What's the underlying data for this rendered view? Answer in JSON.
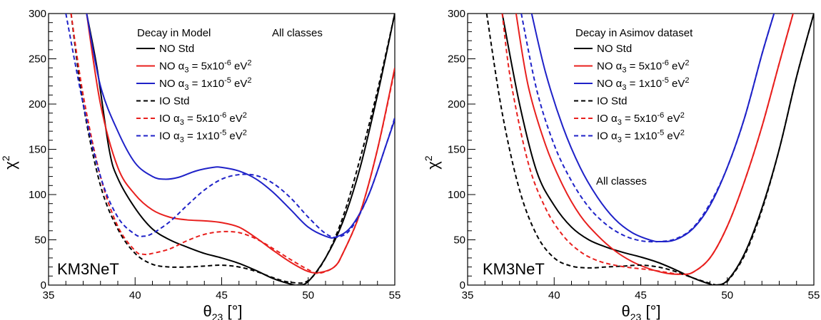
{
  "chart_data": [
    {
      "type": "line",
      "xlabel": "θ23 [°]",
      "ylabel": "χ2",
      "xlim": [
        35,
        55
      ],
      "ylim": [
        0,
        300
      ],
      "xticks": [
        35,
        40,
        45,
        50,
        55
      ],
      "yticks": [
        0,
        50,
        100,
        150,
        200,
        250,
        300
      ],
      "legend_title": "Decay in Model",
      "note": "All classes",
      "watermark": "KM3NeT",
      "legend_position": "top-center",
      "series": [
        {
          "name": "NO Std",
          "color": "#000000",
          "dash": "solid",
          "x": [
            37.2,
            37.8,
            38.5,
            39.0,
            40.0,
            41.0,
            42.0,
            43.0,
            44.0,
            45.0,
            46.0,
            47.0,
            48.0,
            49.0,
            49.4,
            50.0,
            51.0,
            52.0,
            53.0,
            54.0,
            55.0
          ],
          "y": [
            300,
            240,
            150,
            118,
            85,
            62,
            50,
            42,
            35,
            30,
            24,
            16,
            7,
            1,
            0,
            4,
            30,
            70,
            130,
            210,
            300
          ]
        },
        {
          "name": "NO α3 = 5x10-6 eV2",
          "color": "#e8201e",
          "dash": "solid",
          "x": [
            37.2,
            38.0,
            39.0,
            40.0,
            41.0,
            42.0,
            43.0,
            44.0,
            45.0,
            46.0,
            47.0,
            48.0,
            49.0,
            50.0,
            50.7,
            51.5,
            52.0,
            53.0,
            54.0,
            55.0
          ],
          "y": [
            300,
            200,
            130,
            100,
            83,
            75,
            72,
            71,
            69,
            64,
            52,
            38,
            25,
            15,
            14,
            20,
            35,
            80,
            150,
            240
          ]
        },
        {
          "name": "NO α3 = 1x10-5 eV2",
          "color": "#1f22c8",
          "dash": "solid",
          "x": [
            37.2,
            38.0,
            39.0,
            40.0,
            41.0,
            41.7,
            42.5,
            43.5,
            44.5,
            45.0,
            46.0,
            47.0,
            48.0,
            49.0,
            50.0,
            51.0,
            51.6,
            52.5,
            53.5,
            54.5,
            55.0
          ],
          "y": [
            300,
            220,
            170,
            135,
            120,
            117,
            119,
            126,
            130,
            130,
            126,
            117,
            102,
            83,
            64,
            54,
            53,
            65,
            100,
            155,
            183
          ]
        },
        {
          "name": "IO Std",
          "color": "#000000",
          "dash": "dashed",
          "x": [
            36.3,
            37.0,
            38.0,
            39.0,
            40.0,
            41.0,
            42.0,
            43.0,
            44.0,
            45.0,
            46.0,
            47.0,
            48.0,
            49.0,
            50.0,
            51.0,
            52.0,
            53.0,
            54.0,
            55.0
          ],
          "y": [
            300,
            200,
            110,
            62,
            35,
            23,
            20,
            20,
            21,
            22,
            20,
            15,
            8,
            3,
            5,
            30,
            75,
            140,
            215,
            300
          ]
        },
        {
          "name": "IO α3 = 5x10-6 eV2",
          "color": "#e8201e",
          "dash": "dashed",
          "x": [
            36.3,
            37.0,
            38.0,
            39.0,
            40.0,
            40.5,
            41.0,
            42.0,
            43.0,
            44.0,
            45.0,
            46.0,
            47.0,
            48.0,
            49.0,
            50.0,
            50.6,
            51.5,
            52.0,
            53.0,
            54.0,
            55.0
          ],
          "y": [
            300,
            210,
            120,
            65,
            38,
            34,
            35,
            40,
            49,
            56,
            59,
            58,
            51,
            40,
            28,
            17,
            13,
            20,
            35,
            80,
            150,
            238
          ]
        },
        {
          "name": "IO α3 = 1x10-5 eV2",
          "color": "#1f22c8",
          "dash": "dashed",
          "x": [
            36.0,
            37.0,
            38.0,
            39.0,
            40.0,
            40.5,
            41.0,
            42.0,
            43.0,
            44.0,
            45.0,
            46.0,
            47.0,
            48.0,
            49.0,
            50.0,
            51.0,
            51.7,
            52.5,
            53.5,
            54.5,
            55.0
          ],
          "y": [
            300,
            200,
            120,
            75,
            56,
            54,
            57,
            70,
            88,
            105,
            117,
            122,
            121,
            112,
            96,
            75,
            57,
            53,
            63,
            100,
            155,
            185
          ]
        }
      ]
    },
    {
      "type": "line",
      "xlabel": "θ23 [°]",
      "ylabel": "χ2",
      "xlim": [
        35,
        55
      ],
      "ylim": [
        0,
        300
      ],
      "xticks": [
        35,
        40,
        45,
        50,
        55
      ],
      "yticks": [
        0,
        50,
        100,
        150,
        200,
        250,
        300
      ],
      "legend_title": "Decay in Asimov dataset",
      "note": "All classes",
      "watermark": "KM3NeT",
      "legend_position": "top-center",
      "series": [
        {
          "name": "NO Std",
          "color": "#000000",
          "dash": "solid",
          "x": [
            37.0,
            38.0,
            39.0,
            40.0,
            41.0,
            42.0,
            43.0,
            44.0,
            45.0,
            46.0,
            47.0,
            48.0,
            49.0,
            49.3,
            50.0,
            51.0,
            52.0,
            53.0,
            54.0,
            55.0
          ],
          "y": [
            300,
            200,
            125,
            88,
            64,
            50,
            42,
            36,
            31,
            25,
            17,
            8,
            1,
            0,
            5,
            35,
            85,
            150,
            230,
            300
          ]
        },
        {
          "name": "NO α3 = 5x10-6 eV2",
          "color": "#e8201e",
          "dash": "solid",
          "x": [
            37.8,
            38.5,
            39.5,
            40.5,
            41.5,
            42.5,
            43.5,
            44.5,
            45.5,
            46.5,
            47.3,
            48.0,
            49.0,
            50.0,
            51.0,
            52.0,
            53.0,
            53.8
          ],
          "y": [
            300,
            220,
            155,
            110,
            77,
            55,
            38,
            26,
            18,
            13,
            12,
            14,
            30,
            65,
            115,
            175,
            245,
            300
          ]
        },
        {
          "name": "NO α3 = 1x10-5 eV2",
          "color": "#1f22c8",
          "dash": "solid",
          "x": [
            38.7,
            39.5,
            40.5,
            41.5,
            42.5,
            43.5,
            44.5,
            45.5,
            46.1,
            47.0,
            48.0,
            49.0,
            50.0,
            51.0,
            52.0,
            52.7
          ],
          "y": [
            300,
            235,
            175,
            130,
            97,
            73,
            58,
            50,
            48,
            50,
            62,
            88,
            130,
            185,
            255,
            300
          ]
        },
        {
          "name": "IO Std",
          "color": "#000000",
          "dash": "dashed",
          "x": [
            36.1,
            37.0,
            38.0,
            39.0,
            40.0,
            41.0,
            42.0,
            43.0,
            44.0,
            45.0,
            46.0,
            47.0,
            48.0,
            49.0,
            49.5,
            50.0,
            51.0,
            52.0,
            53.0,
            54.0,
            55.0
          ],
          "y": [
            300,
            190,
            105,
            55,
            30,
            21,
            19,
            20,
            21,
            22,
            20,
            15,
            8,
            2,
            0,
            4,
            33,
            83,
            150,
            230,
            300
          ]
        },
        {
          "name": "IO α3 = 5x10-6 eV2",
          "color": "#e8201e",
          "dash": "dashed",
          "x": [
            37.0,
            37.5,
            38.5,
            39.5,
            40.5,
            41.5,
            42.5,
            43.5,
            44.5,
            45.5,
            46.5,
            47.3,
            48.0,
            49.0,
            50.0,
            51.0,
            52.0,
            53.0,
            53.8
          ],
          "y": [
            300,
            225,
            135,
            85,
            55,
            37,
            27,
            22,
            19,
            17,
            14,
            12,
            14,
            30,
            65,
            115,
            175,
            245,
            300
          ]
        },
        {
          "name": "IO α3 = 1x10-5 eV2",
          "color": "#1f22c8",
          "dash": "dashed",
          "x": [
            38.1,
            39.0,
            40.0,
            41.0,
            42.0,
            43.0,
            44.0,
            45.0,
            46.0,
            47.0,
            48.0,
            49.0,
            50.0,
            51.0,
            52.0,
            52.7
          ],
          "y": [
            300,
            215,
            155,
            115,
            86,
            67,
            55,
            49,
            48,
            51,
            63,
            90,
            130,
            185,
            255,
            300
          ]
        }
      ]
    }
  ]
}
